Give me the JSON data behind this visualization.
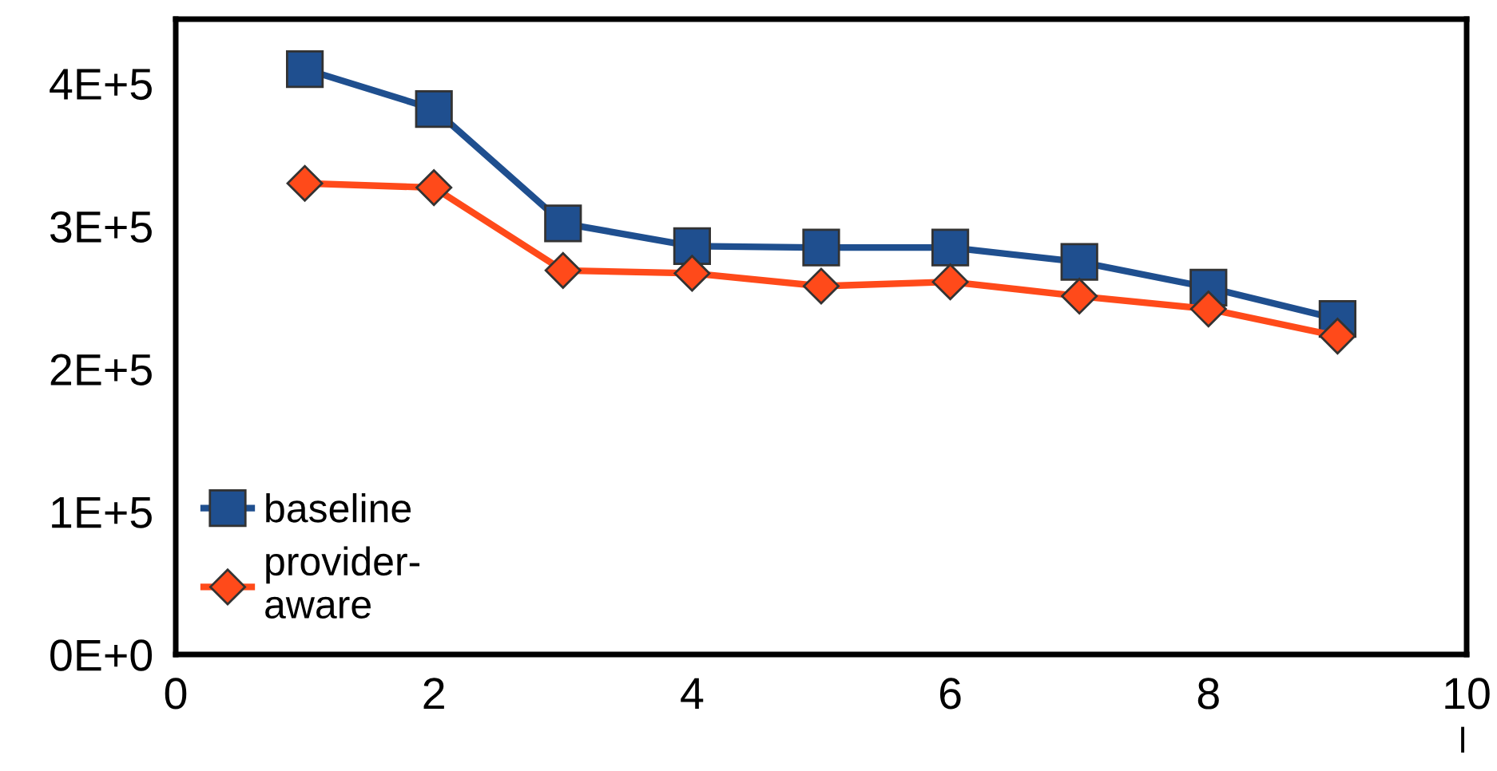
{
  "chart_data": {
    "type": "line",
    "xlabel": "l",
    "x": [
      1,
      2,
      3,
      4,
      5,
      6,
      7,
      8,
      9
    ],
    "series": [
      {
        "name": "baseline",
        "color": "#1f4f8f",
        "marker": "square",
        "values": [
          410000,
          382000,
          302000,
          286000,
          285000,
          285000,
          275000,
          257000,
          235000
        ]
      },
      {
        "name": "provider-\naware",
        "color": "#ff4a1a",
        "marker": "diamond",
        "values": [
          330000,
          327000,
          269000,
          267000,
          258000,
          261000,
          251000,
          242000,
          223000
        ]
      }
    ],
    "xlim": [
      0,
      10
    ],
    "xticks": [
      0,
      2,
      4,
      6,
      8,
      10
    ],
    "ylim": [
      0,
      445000
    ],
    "yticks": [
      {
        "value": 0,
        "label": "0E+0"
      },
      {
        "value": 100000,
        "label": "1E+5"
      },
      {
        "value": 200000,
        "label": "2E+5"
      },
      {
        "value": 300000,
        "label": "3E+5"
      },
      {
        "value": 400000,
        "label": "4E+5"
      }
    ],
    "grid": false,
    "legend": "bottom left",
    "line_style": "solid"
  }
}
